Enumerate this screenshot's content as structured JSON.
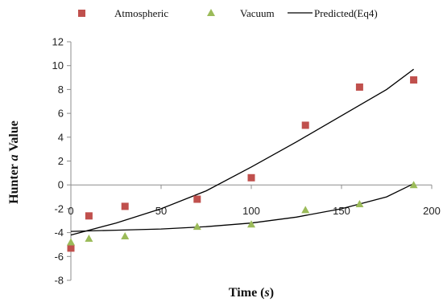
{
  "chart_data": {
    "type": "scatter",
    "xlabel": "Time (s)",
    "xlabel_main": "Time (",
    "xlabel_unit": "s",
    "xlabel_end": ")",
    "ylabel": "Hunter a Value",
    "ylabel_main": "Hunter ",
    "ylabel_var": "a",
    "ylabel_end": " Value",
    "xlim": [
      0,
      200
    ],
    "ylim": [
      -8,
      12
    ],
    "xticks": [
      0,
      50,
      100,
      150,
      200
    ],
    "yticks": [
      -8,
      -6,
      -4,
      -2,
      0,
      2,
      4,
      6,
      8,
      10,
      12
    ],
    "grid": false,
    "legend_position": "top",
    "series": [
      {
        "name": "Atmospheric",
        "marker": "square",
        "color": "#c0504d",
        "points": [
          [
            0,
            -5.3
          ],
          [
            10,
            -2.6
          ],
          [
            30,
            -1.8
          ],
          [
            70,
            -1.2
          ],
          [
            100,
            0.6
          ],
          [
            130,
            5.0
          ],
          [
            160,
            8.2
          ],
          [
            190,
            8.8
          ]
        ]
      },
      {
        "name": "Vacuum",
        "marker": "triangle",
        "color": "#9bbb59",
        "points": [
          [
            0,
            -4.8
          ],
          [
            10,
            -4.5
          ],
          [
            30,
            -4.3
          ],
          [
            70,
            -3.5
          ],
          [
            100,
            -3.3
          ],
          [
            130,
            -2.1
          ],
          [
            160,
            -1.6
          ],
          [
            190,
            0.0
          ]
        ]
      },
      {
        "name": "Predicted(Eq4)",
        "marker": "line",
        "color": "#000000",
        "curves": [
          [
            [
              0,
              -4.2
            ],
            [
              25,
              -3.2
            ],
            [
              50,
              -2.0
            ],
            [
              75,
              -0.5
            ],
            [
              100,
              1.5
            ],
            [
              125,
              3.6
            ],
            [
              150,
              5.8
            ],
            [
              175,
              8.0
            ],
            [
              190,
              9.7
            ]
          ],
          [
            [
              0,
              -3.9
            ],
            [
              25,
              -3.8
            ],
            [
              50,
              -3.7
            ],
            [
              75,
              -3.5
            ],
            [
              100,
              -3.2
            ],
            [
              125,
              -2.7
            ],
            [
              150,
              -2.0
            ],
            [
              175,
              -1.0
            ],
            [
              190,
              0.1
            ]
          ]
        ]
      }
    ]
  }
}
